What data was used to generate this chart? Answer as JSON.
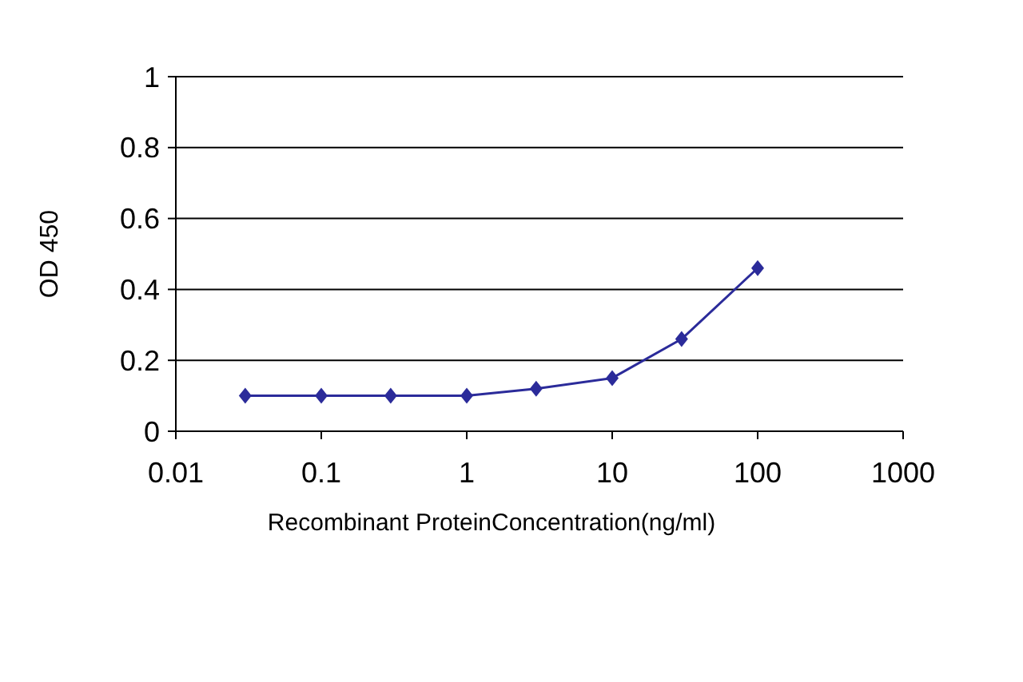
{
  "chart_data": {
    "type": "line",
    "xlabel": "Recombinant ProteinConcentration(ng/ml)",
    "ylabel": "OD 450",
    "x": [
      0.03,
      0.1,
      0.3,
      1,
      3,
      10,
      30,
      100
    ],
    "series": [
      {
        "color": "#2b2b9a",
        "values": [
          0.1,
          0.1,
          0.1,
          0.1,
          0.12,
          0.15,
          0.26,
          0.46
        ]
      }
    ],
    "log": "x",
    "xlim": [
      0.01,
      1000
    ],
    "xticks": [
      0.01,
      0.1,
      1,
      10,
      100,
      1000
    ],
    "ylim": [
      0,
      1
    ],
    "yticks": [
      0,
      0.2,
      0.4,
      0.6,
      0.8,
      1
    ],
    "grid": "y",
    "marker": "diamond",
    "line_style": "solid"
  }
}
